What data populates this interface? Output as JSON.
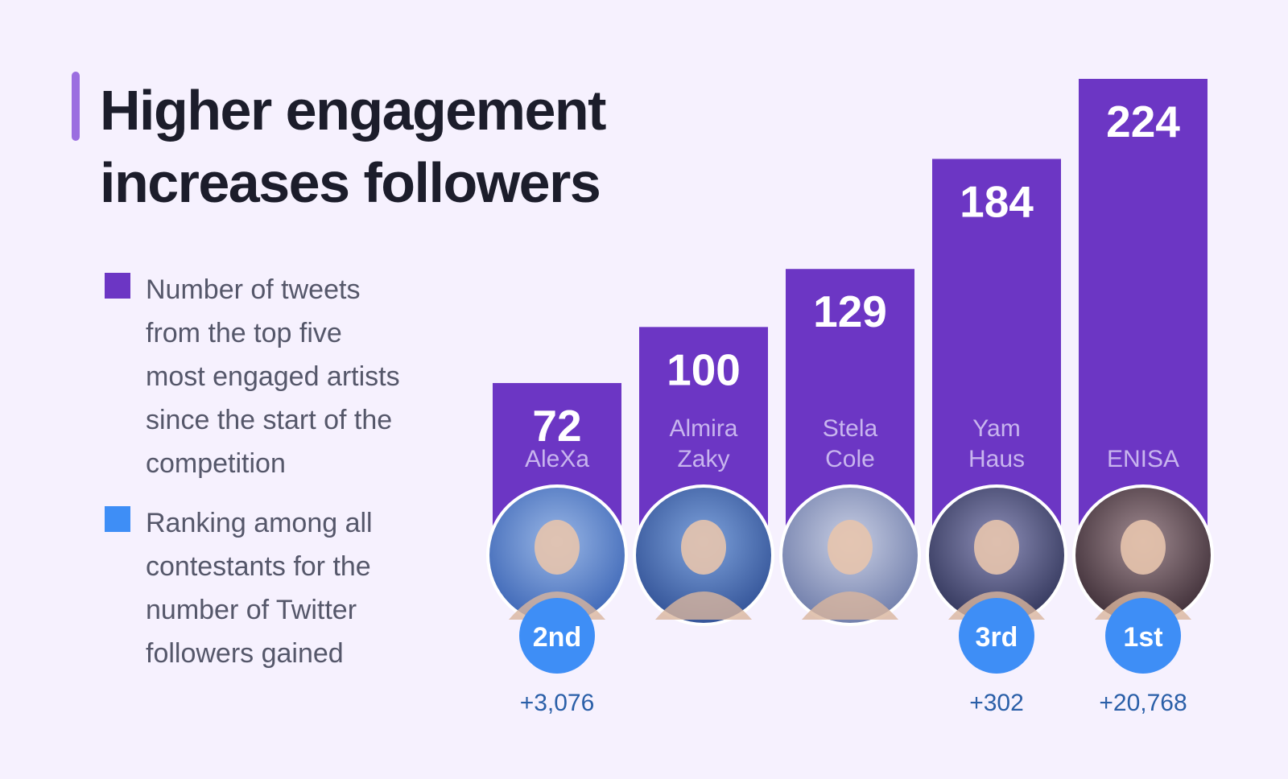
{
  "title": {
    "line1": "Higher engagement",
    "line2": "increases followers"
  },
  "legend": [
    {
      "color": "#6c36c4",
      "lines": [
        "Number of tweets",
        "from the top five",
        "most engaged artists",
        "since the start of the",
        "competition"
      ]
    },
    {
      "color": "#3e8ef6",
      "lines": [
        "Ranking among all",
        "contestants for the",
        "number of Twitter",
        "followers gained"
      ]
    }
  ],
  "colors": {
    "bar": "#6c36c4",
    "rank_badge": "#3e8ef6",
    "background": "#f6f1fe"
  },
  "chart_data": {
    "type": "bar",
    "categories": [
      "AleXa",
      "Almira Zaky",
      "Stela Cole",
      "Yam Haus",
      "ENISA"
    ],
    "name_lines": [
      [
        "AleXa"
      ],
      [
        "Almira",
        "Zaky"
      ],
      [
        "Stela",
        "Cole"
      ],
      [
        "Yam",
        "Haus"
      ],
      [
        "ENISA"
      ]
    ],
    "series": [
      {
        "values": [
          72,
          100,
          129,
          184,
          224
        ]
      }
    ],
    "ranking": [
      "2nd",
      null,
      null,
      "3rd",
      "1st"
    ],
    "followers_gained": [
      "+3,076",
      null,
      null,
      "+302",
      "+20,768"
    ],
    "avatars": [
      "avatar-alexa",
      "avatar-almira-zaky",
      "avatar-stela-cole",
      "avatar-yam-haus",
      "avatar-enisa"
    ],
    "ylim": [
      0,
      224
    ],
    "grid": false
  }
}
